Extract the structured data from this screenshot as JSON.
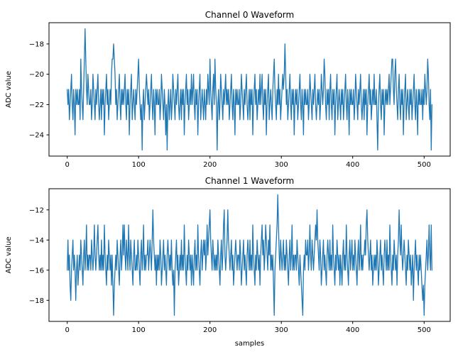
{
  "figure": {
    "background_color": "#ffffff",
    "text_color": "#000000",
    "spine_color": "#000000"
  },
  "chart_data": [
    {
      "type": "line",
      "title": "Channel 0 Waveform",
      "xlabel": "",
      "ylabel": "ADC value",
      "line_color": "#1f77b4",
      "grid": false,
      "legend": "none",
      "x_start": 0,
      "x_step": 1,
      "n_samples": 512,
      "xlim": [
        -25.55,
        536.55
      ],
      "ylim": [
        -25.4,
        -16.6
      ],
      "xticks": [
        0,
        100,
        200,
        300,
        400,
        500
      ],
      "yticks": [
        -18,
        -20,
        -22,
        -24
      ],
      "values": [
        -21,
        -22,
        -21,
        -23,
        -22,
        -21,
        -20,
        -22,
        -23,
        -21,
        -22,
        -24,
        -21,
        -22,
        -21,
        -22,
        -22,
        -21,
        -23,
        -19,
        -21,
        -22,
        -23,
        -21,
        -19,
        -17,
        -19,
        -21,
        -22,
        -20,
        -21,
        -22,
        -22,
        -21,
        -23,
        -22,
        -20,
        -21,
        -22,
        -23,
        -21,
        -22,
        -21,
        -20,
        -22,
        -23,
        -22,
        -21,
        -23,
        -21,
        -22,
        -21,
        -24,
        -22,
        -21,
        -20,
        -22,
        -21,
        -23,
        -22,
        -21,
        -22,
        -20,
        -19,
        -19,
        -18,
        -19,
        -20,
        -22,
        -21,
        -23,
        -22,
        -21,
        -20,
        -22,
        -23,
        -21,
        -22,
        -21,
        -22,
        -21,
        -20,
        -22,
        -23,
        -21,
        -22,
        -21,
        -24,
        -22,
        -21,
        -20,
        -23,
        -22,
        -21,
        -22,
        -23,
        -21,
        -22,
        -21,
        -20,
        -19,
        -21,
        -22,
        -23,
        -22,
        -25,
        -22,
        -21,
        -23,
        -22,
        -21,
        -20,
        -21,
        -22,
        -21,
        -23,
        -22,
        -21,
        -20,
        -22,
        -23,
        -21,
        -22,
        -24,
        -21,
        -22,
        -21,
        -22,
        -22,
        -21,
        -23,
        -22,
        -20,
        -21,
        -22,
        -23,
        -21,
        -22,
        -24,
        -22,
        -25,
        -22,
        -21,
        -23,
        -22,
        -21,
        -23,
        -22,
        -20,
        -21,
        -22,
        -23,
        -21,
        -22,
        -21,
        -20,
        -22,
        -23,
        -22,
        -21,
        -23,
        -21,
        -22,
        -21,
        -24,
        -22,
        -21,
        -20,
        -22,
        -21,
        -23,
        -22,
        -21,
        -22,
        -20,
        -22,
        -21,
        -20,
        -22,
        -23,
        -21,
        -22,
        -21,
        -24,
        -22,
        -21,
        -20,
        -23,
        -22,
        -21,
        -22,
        -23,
        -21,
        -22,
        -23,
        -21,
        -22,
        -20,
        -21,
        -22,
        -19,
        -21,
        -22,
        -23,
        -21,
        -20,
        -22,
        -19,
        -21,
        -22,
        -25,
        -22,
        -21,
        -23,
        -22,
        -20,
        -21,
        -22,
        -23,
        -21,
        -22,
        -21,
        -20,
        -22,
        -21,
        -22,
        -21,
        -23,
        -22,
        -21,
        -20,
        -22,
        -23,
        -21,
        -22,
        -24,
        -21,
        -22,
        -21,
        -22,
        -22,
        -21,
        -23,
        -22,
        -20,
        -21,
        -22,
        -23,
        -21,
        -22,
        -21,
        -20,
        -22,
        -23,
        -22,
        -21,
        -23,
        -21,
        -22,
        -21,
        -24,
        -22,
        -21,
        -20,
        -22,
        -21,
        -23,
        -22,
        -21,
        -22,
        -20,
        -22,
        -21,
        -20,
        -22,
        -23,
        -21,
        -22,
        -21,
        -24,
        -22,
        -21,
        -20,
        -23,
        -22,
        -21,
        -22,
        -23,
        -21,
        -20,
        -19,
        -21,
        -22,
        -23,
        -21,
        -22,
        -20,
        -22,
        -21,
        -23,
        -22,
        -21,
        -20,
        -21,
        -20,
        -18,
        -20,
        -22,
        -21,
        -23,
        -22,
        -21,
        -20,
        -22,
        -23,
        -21,
        -22,
        -21,
        -24,
        -22,
        -21,
        -22,
        -21,
        -23,
        -22,
        -21,
        -20,
        -22,
        -23,
        -21,
        -22,
        -24,
        -21,
        -22,
        -21,
        -22,
        -22,
        -21,
        -23,
        -22,
        -20,
        -21,
        -22,
        -23,
        -21,
        -22,
        -21,
        -20,
        -22,
        -23,
        -22,
        -21,
        -22,
        -21,
        -23,
        -22,
        -20,
        -21,
        -22,
        -21,
        -19,
        -20,
        -22,
        -23,
        -21,
        -22,
        -21,
        -23,
        -21,
        -20,
        -22,
        -23,
        -21,
        -22,
        -21,
        -24,
        -22,
        -21,
        -20,
        -23,
        -22,
        -21,
        -22,
        -23,
        -21,
        -22,
        -21,
        -23,
        -22,
        -21,
        -20,
        -22,
        -23,
        -21,
        -22,
        -24,
        -21,
        -22,
        -21,
        -22,
        -22,
        -21,
        -23,
        -22,
        -20,
        -21,
        -22,
        -23,
        -21,
        -22,
        -21,
        -20,
        -22,
        -23,
        -22,
        -21,
        -23,
        -21,
        -22,
        -21,
        -24,
        -22,
        -21,
        -20,
        -22,
        -21,
        -23,
        -22,
        -21,
        -22,
        -20,
        -22,
        -22,
        -21,
        -23,
        -25,
        -22,
        -21,
        -20,
        -22,
        -23,
        -21,
        -22,
        -21,
        -24,
        -22,
        -21,
        -22,
        -21,
        -22,
        -21,
        -20,
        -22,
        -21,
        -20,
        -19,
        -19,
        -21,
        -22,
        -20,
        -19,
        -21,
        -22,
        -23,
        -21,
        -20,
        -22,
        -23,
        -21,
        -22,
        -21,
        -24,
        -22,
        -21,
        -20,
        -23,
        -22,
        -21,
        -22,
        -23,
        -21,
        -22,
        -21,
        -23,
        -22,
        -21,
        -20,
        -22,
        -23,
        -21,
        -22,
        -24,
        -21,
        -22,
        -21,
        -22,
        -22,
        -21,
        -23,
        -21,
        -22,
        -20,
        -21,
        -22,
        -21,
        -19,
        -20,
        -22,
        -23,
        -21,
        -25,
        -22
      ]
    },
    {
      "type": "line",
      "title": "Channel 1 Waveform",
      "xlabel": "samples",
      "ylabel": "ADC value",
      "line_color": "#1f77b4",
      "grid": false,
      "legend": "none",
      "x_start": 0,
      "x_step": 1,
      "n_samples": 512,
      "xlim": [
        -25.55,
        536.55
      ],
      "ylim": [
        -19.4,
        -10.6
      ],
      "xticks": [
        0,
        100,
        200,
        300,
        400,
        500
      ],
      "yticks": [
        -12,
        -14,
        -16,
        -18
      ],
      "values": [
        -16,
        -14,
        -16,
        -15,
        -17,
        -18,
        -16,
        -15,
        -14,
        -16,
        -15,
        -16,
        -18,
        -16,
        -15,
        -17,
        -16,
        -15,
        -16,
        -14,
        -15,
        -16,
        -17,
        -15,
        -14,
        -16,
        -15,
        -13,
        -16,
        -15,
        -16,
        -15,
        -15,
        -16,
        -14,
        -15,
        -16,
        -15,
        -13,
        -15,
        -16,
        -15,
        -14,
        -13,
        -15,
        -16,
        -15,
        -16,
        -14,
        -16,
        -15,
        -16,
        -13,
        -15,
        -16,
        -17,
        -15,
        -16,
        -14,
        -15,
        -16,
        -15,
        -17,
        -15,
        -17,
        -19,
        -17,
        -16,
        -15,
        -16,
        -14,
        -15,
        -16,
        -17,
        -15,
        -14,
        -16,
        -15,
        -13,
        -15,
        -13,
        -15,
        -16,
        -14,
        -15,
        -16,
        -13,
        -15,
        -16,
        -14,
        -15,
        -16,
        -17,
        -15,
        -14,
        -16,
        -16,
        -15,
        -16,
        -14,
        -15,
        -16,
        -17,
        -15,
        -14,
        -16,
        -15,
        -13,
        -16,
        -15,
        -16,
        -15,
        -15,
        -14,
        -16,
        -15,
        -14,
        -15,
        -16,
        -14,
        -12,
        -14,
        -15,
        -16,
        -15,
        -17,
        -15,
        -16,
        -15,
        -16,
        -14,
        -15,
        -17,
        -16,
        -15,
        -14,
        -16,
        -15,
        -16,
        -17,
        -15,
        -14,
        -15,
        -16,
        -15,
        -16,
        -14,
        -16,
        -17,
        -16,
        -19,
        -16,
        -15,
        -14,
        -16,
        -15,
        -17,
        -16,
        -15,
        -16,
        -14,
        -16,
        -15,
        -16,
        -13,
        -15,
        -16,
        -17,
        -15,
        -16,
        -14,
        -15,
        -16,
        -15,
        -17,
        -15,
        -16,
        -17,
        -15,
        -14,
        -16,
        -15,
        -16,
        -13,
        -15,
        -16,
        -17,
        -15,
        -14,
        -16,
        -15,
        -14,
        -15,
        -14,
        -16,
        -15,
        -13,
        -15,
        -14,
        -13,
        -12,
        -14,
        -15,
        -16,
        -14,
        -15,
        -16,
        -15,
        -16,
        -15,
        -16,
        -14,
        -15,
        -16,
        -17,
        -15,
        -14,
        -16,
        -15,
        -13,
        -12,
        -15,
        -16,
        -15,
        -14,
        -12,
        -14,
        -15,
        -16,
        -15,
        -14,
        -16,
        -15,
        -17,
        -16,
        -15,
        -14,
        -15,
        -16,
        -15,
        -15,
        -16,
        -14,
        -15,
        -17,
        -16,
        -15,
        -14,
        -16,
        -15,
        -16,
        -17,
        -15,
        -14,
        -15,
        -16,
        -14,
        -16,
        -15,
        -16,
        -13,
        -15,
        -16,
        -17,
        -15,
        -16,
        -14,
        -15,
        -16,
        -15,
        -17,
        -15,
        -14,
        -13,
        -15,
        -14,
        -16,
        -15,
        -13,
        -14,
        -15,
        -16,
        -14,
        -15,
        -13,
        -16,
        -15,
        -16,
        -15,
        -17,
        -19,
        -16,
        -15,
        -14,
        -13,
        -11,
        -13,
        -15,
        -16,
        -14,
        -15,
        -16,
        -15,
        -14,
        -16,
        -15,
        -16,
        -14,
        -15,
        -16,
        -17,
        -15,
        -14,
        -16,
        -15,
        -13,
        -16,
        -15,
        -16,
        -15,
        -15,
        -16,
        -14,
        -15,
        -16,
        -17,
        -15,
        -16,
        -17,
        -18,
        -19,
        -16,
        -15,
        -16,
        -14,
        -15,
        -15,
        -14,
        -16,
        -15,
        -13,
        -15,
        -16,
        -14,
        -15,
        -16,
        -15,
        -14,
        -13,
        -14,
        -12,
        -14,
        -15,
        -16,
        -14,
        -15,
        -17,
        -16,
        -15,
        -14,
        -16,
        -15,
        -16,
        -17,
        -15,
        -14,
        -15,
        -16,
        -14,
        -16,
        -15,
        -16,
        -13,
        -15,
        -16,
        -17,
        -15,
        -16,
        -14,
        -15,
        -16,
        -15,
        -17,
        -15,
        -16,
        -17,
        -15,
        -14,
        -16,
        -15,
        -16,
        -13,
        -15,
        -16,
        -17,
        -15,
        -14,
        -16,
        -15,
        -14,
        -16,
        -15,
        -16,
        -14,
        -15,
        -16,
        -17,
        -15,
        -14,
        -16,
        -15,
        -13,
        -16,
        -15,
        -16,
        -15,
        -15,
        -14,
        -15,
        -13,
        -12,
        -14,
        -15,
        -16,
        -15,
        -14,
        -16,
        -15,
        -17,
        -16,
        -15,
        -16,
        -15,
        -16,
        -14,
        -15,
        -17,
        -16,
        -15,
        -14,
        -16,
        -15,
        -16,
        -17,
        -15,
        -14,
        -15,
        -16,
        -14,
        -16,
        -15,
        -16,
        -13,
        -15,
        -16,
        -17,
        -15,
        -16,
        -14,
        -15,
        -16,
        -15,
        -17,
        -15,
        -14,
        -12,
        -14,
        -15,
        -13,
        -15,
        -16,
        -15,
        -14,
        -15,
        -16,
        -17,
        -15,
        -16,
        -14,
        -15,
        -16,
        -15,
        -17,
        -16,
        -15,
        -18,
        -16,
        -15,
        -14,
        -16,
        -15,
        -16,
        -17,
        -15,
        -16,
        -15,
        -16,
        -17,
        -18,
        -17,
        -19,
        -17,
        -16,
        -15,
        -14,
        -16,
        -15,
        -13,
        -15,
        -16,
        -13,
        -16
      ]
    }
  ]
}
